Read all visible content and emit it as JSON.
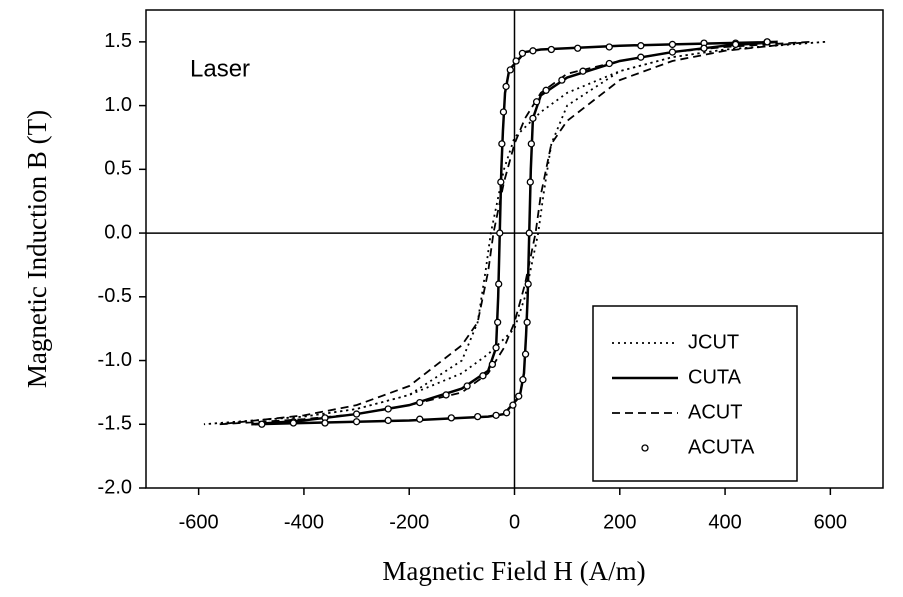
{
  "chart_data": {
    "type": "line",
    "annotation": "Laser",
    "x_label": "Magnetic Field H (A/m)",
    "y_label": "Magnetic Induction B (T)",
    "xlim": [
      -700,
      700
    ],
    "xticks": [
      -600,
      -400,
      -200,
      0,
      200,
      400,
      600
    ],
    "ylim": [
      -2,
      1.75
    ],
    "yticks": [
      {
        "value": -2,
        "label": "-2.0"
      },
      {
        "value": -1.5,
        "label": "-1.5"
      },
      {
        "value": -1,
        "label": "-1.0"
      },
      {
        "value": -0.5,
        "label": "-0.5"
      },
      {
        "value": 0,
        "label": "0.0"
      },
      {
        "value": 0.5,
        "label": "0.5"
      },
      {
        "value": 1,
        "label": "1.0"
      },
      {
        "value": 1.5,
        "label": "1.5"
      }
    ],
    "zero_lines": true,
    "series": [
      {
        "name": "JCUT",
        "color": "#000000",
        "line_style": "dotted",
        "x": [
          590,
          400,
          300,
          200,
          100,
          50,
          0,
          -20,
          -35,
          -45,
          -55,
          -70,
          -100,
          -200,
          -300,
          -400,
          -590,
          -400,
          -300,
          -200,
          -100,
          -50,
          0,
          20,
          35,
          45,
          55,
          70,
          100,
          200,
          300,
          400,
          590
        ],
        "values": [
          1.5,
          1.44,
          1.38,
          1.27,
          1.1,
          0.95,
          0.75,
          0.5,
          0.2,
          0,
          -0.3,
          -0.7,
          -1,
          -1.27,
          -1.38,
          -1.44,
          -1.5,
          -1.44,
          -1.38,
          -1.27,
          -1.1,
          -0.95,
          -0.75,
          -0.5,
          -0.2,
          0,
          0.3,
          0.7,
          1,
          1.27,
          1.38,
          1.44,
          1.5
        ]
      },
      {
        "name": "CUTA",
        "color": "#000000",
        "line_style": "solid",
        "x": [
          500,
          400,
          300,
          200,
          100,
          50,
          20,
          5,
          -10,
          -18,
          -22,
          -25,
          -28,
          -31,
          -35,
          -50,
          -100,
          -200,
          -300,
          -400,
          -500,
          -400,
          -300,
          -200,
          -100,
          -50,
          -20,
          -5,
          10,
          18,
          22,
          25,
          28,
          31,
          35,
          50,
          100,
          200,
          300,
          400,
          500
        ],
        "values": [
          1.5,
          1.49,
          1.48,
          1.47,
          1.45,
          1.44,
          1.42,
          1.35,
          1.28,
          1.1,
          0.8,
          0.5,
          0,
          -0.5,
          -0.9,
          -1.08,
          -1.22,
          -1.35,
          -1.42,
          -1.47,
          -1.5,
          -1.49,
          -1.48,
          -1.47,
          -1.45,
          -1.44,
          -1.42,
          -1.35,
          -1.28,
          -1.1,
          -0.8,
          -0.5,
          0,
          0.5,
          0.9,
          1.08,
          1.22,
          1.35,
          1.42,
          1.47,
          1.5
        ]
      },
      {
        "name": "ACUT",
        "color": "#000000",
        "line_style": "dashed",
        "x": [
          560,
          400,
          300,
          200,
          100,
          50,
          20,
          0,
          -20,
          -35,
          -40,
          -50,
          -70,
          -100,
          -200,
          -300,
          -400,
          -560,
          -400,
          -300,
          -200,
          -100,
          -50,
          -20,
          0,
          20,
          35,
          40,
          50,
          70,
          100,
          200,
          300,
          400,
          560
        ],
        "values": [
          1.5,
          1.46,
          1.42,
          1.35,
          1.25,
          1.1,
          0.9,
          0.7,
          0.4,
          0.1,
          0,
          -0.3,
          -0.7,
          -0.88,
          -1.2,
          -1.35,
          -1.43,
          -1.5,
          -1.46,
          -1.42,
          -1.35,
          -1.25,
          -1.1,
          -0.9,
          -0.7,
          -0.4,
          -0.1,
          0,
          0.3,
          0.7,
          0.88,
          1.2,
          1.35,
          1.43,
          1.5
        ]
      },
      {
        "name": "ACUTA",
        "color": "#000000",
        "line_style": "none",
        "marker": "circle",
        "x": [
          480,
          420,
          360,
          300,
          240,
          180,
          120,
          70,
          35,
          15,
          3,
          -8,
          -16,
          -21,
          -24,
          -26,
          -28,
          -30,
          -32,
          -35,
          -42,
          -60,
          -90,
          -130,
          -180,
          -240,
          -300,
          -360,
          -420,
          -480,
          -420,
          -360,
          -300,
          -240,
          -180,
          -120,
          -70,
          -35,
          -15,
          -3,
          8,
          16,
          21,
          24,
          26,
          28,
          30,
          32,
          35,
          42,
          60,
          90,
          130,
          180,
          240,
          300,
          360,
          420,
          480
        ],
        "values": [
          1.5,
          1.49,
          1.49,
          1.48,
          1.47,
          1.46,
          1.45,
          1.44,
          1.43,
          1.41,
          1.35,
          1.28,
          1.15,
          0.95,
          0.7,
          0.4,
          0,
          -0.4,
          -0.7,
          -0.9,
          -1.03,
          -1.12,
          -1.2,
          -1.27,
          -1.33,
          -1.38,
          -1.42,
          -1.45,
          -1.48,
          -1.5,
          -1.49,
          -1.49,
          -1.48,
          -1.47,
          -1.46,
          -1.45,
          -1.44,
          -1.43,
          -1.41,
          -1.35,
          -1.28,
          -1.15,
          -0.95,
          -0.7,
          -0.4,
          0,
          0.4,
          0.7,
          0.9,
          1.03,
          1.12,
          1.2,
          1.27,
          1.33,
          1.38,
          1.42,
          1.45,
          1.48,
          1.5
        ]
      }
    ]
  }
}
